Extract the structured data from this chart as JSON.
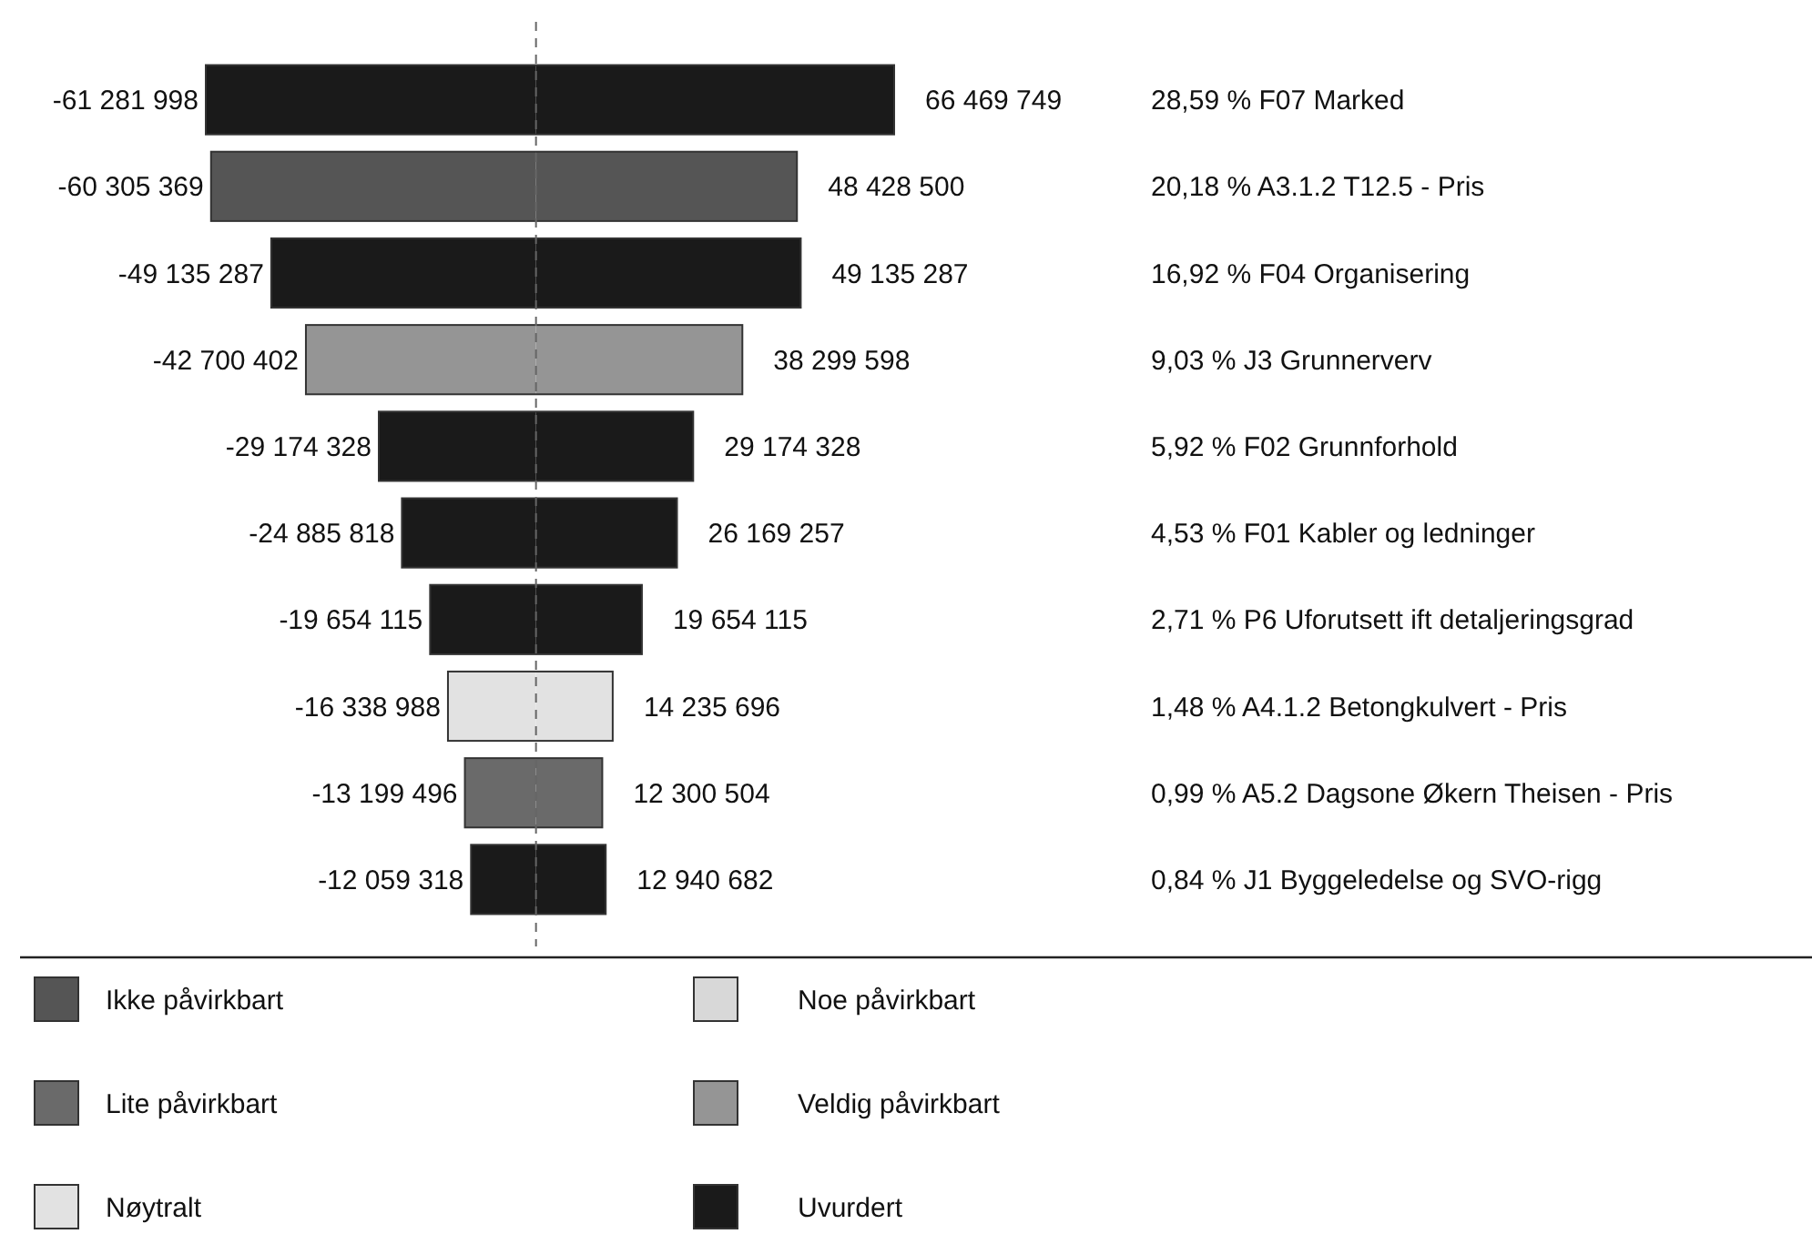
{
  "chart_data": {
    "type": "bar",
    "orientation": "horizontal",
    "stacked": true,
    "categories": [
      "28,59 % F07 Marked",
      "20,18 % A3.1.2 T12.5 - Pris",
      "16,92 % F04 Organisering",
      "9,03 % J3 Grunnerverv",
      "5,92 % F02 Grunnforhold",
      "4,53 % F01 Kabler og ledninger",
      "2,71 % P6 Uforutsett ift detaljeringsgrad",
      "1,48 % A4.1.2 Betongkulvert - Pris",
      "0,99 % A5.2 Dagsone Økern Theisen - Pris",
      "0,84 % J1 Byggeledelse og SVO-rigg"
    ],
    "series": [
      {
        "colors": [
          "#1a1a1a",
          "#555555",
          "#1a1a1a",
          "#959595",
          "#1a1a1a",
          "#1a1a1a",
          "#1a1a1a",
          "#e2e2e2",
          "#6a6a6a",
          "#1a1a1a"
        ],
        "values": [
          -61281998,
          -60305369,
          -49135287,
          -42700402,
          -29174328,
          -24885818,
          -19654115,
          -16338988,
          -13199496,
          -12059318
        ],
        "value_labels": [
          "-61 281 998",
          "-60 305 369",
          "-49 135 287",
          "-42 700 402",
          "-29 174 328",
          "-24 885 818",
          "-19 654 115",
          "-16 338 988",
          "-13 199 496",
          "-12 059 318"
        ]
      },
      {
        "colors": [
          "#1a1a1a",
          "#555555",
          "#1a1a1a",
          "#959595",
          "#1a1a1a",
          "#1a1a1a",
          "#1a1a1a",
          "#e2e2e2",
          "#6a6a6a",
          "#1a1a1a"
        ],
        "values": [
          66469749,
          48428500,
          49135287,
          38299598,
          29174328,
          26169257,
          19654115,
          14235696,
          12300504,
          12940682
        ],
        "value_labels": [
          "66 469 749",
          "48 428 500",
          "49 135 287",
          "38 299 598",
          "29 174 328",
          "26 169 257",
          "19 654 115",
          "14 235 696",
          "12 300 504",
          "12 940 682"
        ]
      },
      {
        "name": "Ikke påvirkbart",
        "color": "#555555",
        "values": [
          null,
          null,
          null,
          null,
          null,
          null,
          null,
          null,
          null,
          null
        ]
      },
      {
        "name": "Lite påvirkbart",
        "color": "#6a6a6a",
        "values": [
          null,
          null,
          null,
          null,
          null,
          null,
          null,
          null,
          null,
          null
        ]
      },
      {
        "name": "Nøytralt",
        "color": "#e2e2e2",
        "values": [
          null,
          null,
          null,
          null,
          null,
          null,
          null,
          null,
          null,
          null
        ]
      },
      {
        "name": "Noe påvirkbart",
        "color": "#d8d8d8",
        "values": [
          null,
          null,
          null,
          null,
          null,
          null,
          null,
          null,
          null,
          null
        ]
      },
      {
        "name": "Veldig påvirkbart",
        "color": "#959595",
        "values": [
          null,
          null,
          null,
          null,
          null,
          null,
          null,
          null,
          null,
          null
        ]
      },
      {
        "name": "Uvurdert",
        "color": "#1a1a1a",
        "values": [
          null,
          null,
          null,
          null,
          null,
          null,
          null,
          null,
          null,
          null
        ]
      }
    ],
    "ref_lines": [
      {
        "axis": "x",
        "value": 0,
        "color": "#666666",
        "line_style": "dashed"
      }
    ],
    "legend": "bottom",
    "tick_labels": false
  }
}
